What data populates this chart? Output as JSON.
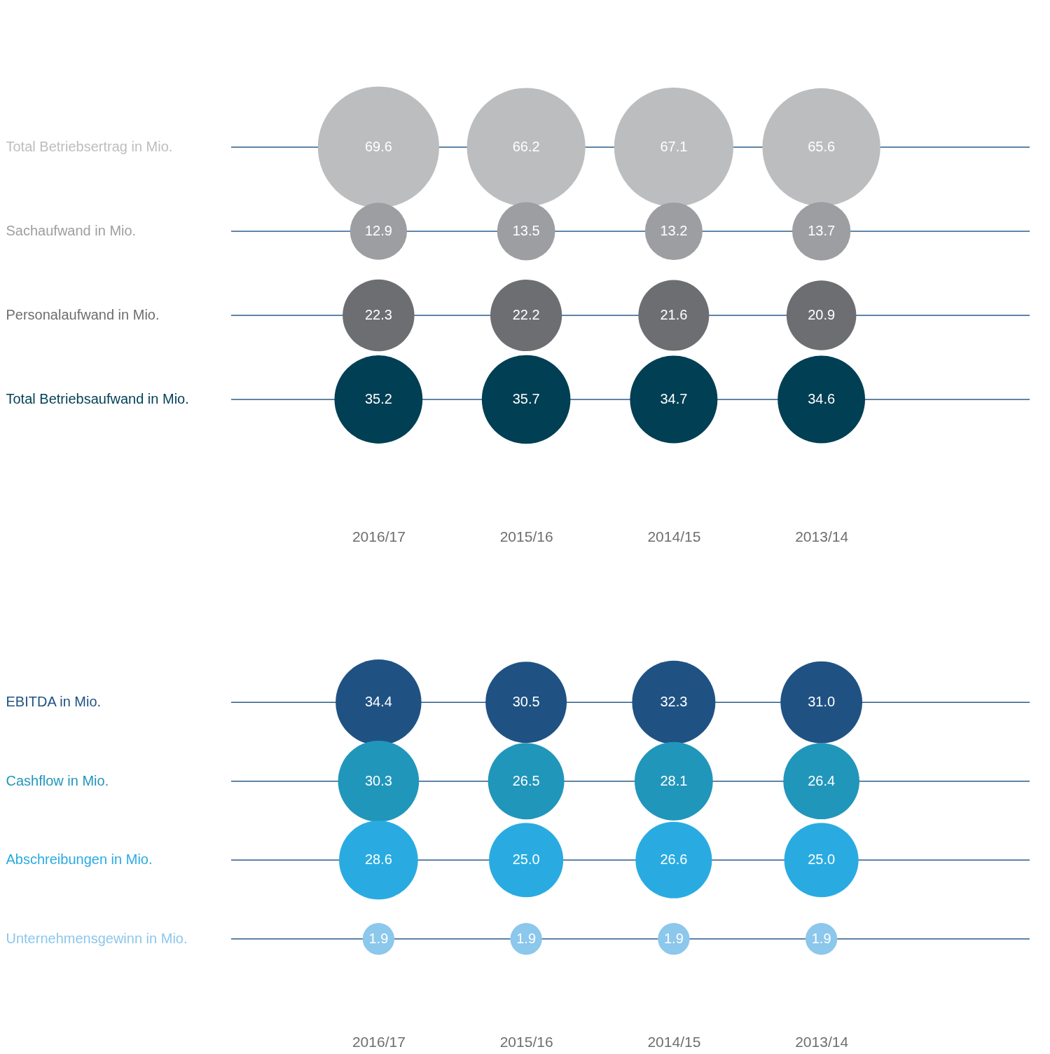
{
  "chart_data": [
    {
      "type": "other",
      "categories": [
        "2016/17",
        "2015/16",
        "2014/15",
        "2013/14"
      ],
      "series": [
        {
          "name": "Total Betriebsertrag in Mio.",
          "color": "#bcbdbf",
          "values": [
            69.6,
            66.2,
            67.1,
            65.6
          ],
          "value_labels": [
            "69.6",
            "66.2",
            "67.1",
            "65.6"
          ]
        },
        {
          "name": "Sachaufwand in Mio.",
          "color": "#9d9ea1",
          "values": [
            12.9,
            13.5,
            13.2,
            13.7
          ],
          "value_labels": [
            "12.9",
            "13.5",
            "13.2",
            "13.7"
          ]
        },
        {
          "name": "Personalaufwand in Mio.",
          "color": "#6d6e71",
          "values": [
            22.3,
            22.2,
            21.6,
            20.9
          ],
          "value_labels": [
            "22.3",
            "22.2",
            "21.6",
            "20.9"
          ]
        },
        {
          "name": "Total Betriebsaufwand in Mio.",
          "color": "#003f54",
          "values": [
            35.2,
            35.7,
            34.7,
            34.6
          ],
          "value_labels": [
            "35.2",
            "35.7",
            "34.7",
            "34.6"
          ]
        }
      ]
    },
    {
      "type": "other",
      "categories": [
        "2016/17",
        "2015/16",
        "2014/15",
        "2013/14"
      ],
      "series": [
        {
          "name": "EBITDA in Mio.",
          "color": "#1f5283",
          "values": [
            34.4,
            30.5,
            32.3,
            31.0
          ],
          "value_labels": [
            "34.4",
            "30.5",
            "32.3",
            "31.0"
          ]
        },
        {
          "name": "Cashflow in Mio.",
          "color": "#2196bb",
          "values": [
            30.3,
            26.5,
            28.1,
            26.4
          ],
          "value_labels": [
            "30.3",
            "26.5",
            "28.1",
            "26.4"
          ]
        },
        {
          "name": "Abschreibungen in Mio.",
          "color": "#29abe2",
          "values": [
            28.6,
            25.0,
            26.6,
            25.0
          ],
          "value_labels": [
            "28.6",
            "25.0",
            "26.6",
            "25.0"
          ]
        },
        {
          "name": "Unternehmensgewinn in Mio.",
          "color": "#8cc7ec",
          "values": [
            1.9,
            1.9,
            1.9,
            1.9
          ],
          "value_labels": [
            "1.9",
            "1.9",
            "1.9",
            "1.9"
          ]
        }
      ]
    }
  ]
}
